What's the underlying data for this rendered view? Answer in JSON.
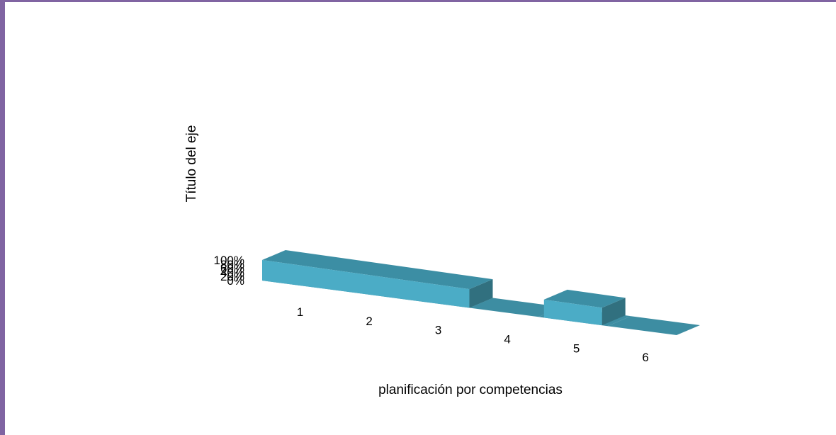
{
  "chart_data": {
    "type": "bar",
    "style": "3d",
    "categories": [
      "1",
      "2",
      "3",
      "4",
      "5",
      "6"
    ],
    "values": [
      100,
      100,
      100,
      0,
      100,
      0
    ],
    "ylim": [
      0,
      100
    ],
    "yticks": [
      "0%",
      "20%",
      "40%",
      "60%",
      "80%",
      "100%"
    ],
    "xlabel": "planificación por competencias",
    "ylabel": "Título del eje",
    "grid": false,
    "colors": {
      "front": "#4bacc6",
      "side": "#31707f",
      "top": "#3c8ea4",
      "floor": "#3d8da2",
      "frame_border": "#8064a2"
    }
  }
}
